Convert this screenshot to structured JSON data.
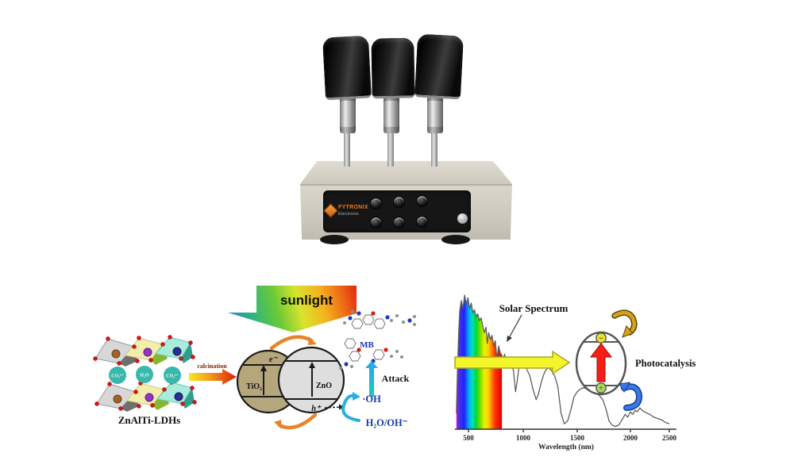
{
  "device": {
    "brand": "FYTRONIX",
    "brand_sub": "Electronic"
  },
  "mechanism": {
    "sunlight": "sunlight",
    "calcination": "calcination",
    "precursor": "ZnAlTi-LDHs",
    "interlayer": [
      "CO₃²⁻",
      "H₂O",
      "CO₃²⁻"
    ],
    "tio2": "TiO₂",
    "zno": "ZnO",
    "electron": "e⁻",
    "hole": "h⁺",
    "dye": "MB",
    "attack": "Attack",
    "radical": "·OH",
    "water": "H₂O/OH⁻"
  },
  "spectrum": {
    "title": "Solar Spectrum",
    "xlabel": "Wavelength (nm)",
    "photocatalysis": "Photocatalysis",
    "electron_symbol": "−",
    "hole_symbol": "+"
  },
  "colors": {
    "brand_orange": "#f07818",
    "dye_blue": "#2030c0",
    "radical_blue": "#1a3aa8",
    "arc_orange": "#e8832a",
    "arrow_gold": "#d4a418",
    "arrow_blue": "#3a78e8",
    "red_arrow": "#f32018"
  },
  "chart_data": {
    "type": "area",
    "title": "Solar Spectrum",
    "xlabel": "Wavelength (nm)",
    "ylabel": "",
    "x_ticks": [
      500,
      1000,
      1500,
      2000,
      2500
    ],
    "x_range": [
      390,
      2550
    ],
    "y_range": [
      0,
      1
    ],
    "grid": false,
    "legend": false,
    "rainbow_region_nm": [
      390,
      805
    ],
    "points": [
      [
        390,
        0.12
      ],
      [
        400,
        0.45
      ],
      [
        410,
        0.7
      ],
      [
        420,
        0.88
      ],
      [
        435,
        0.96
      ],
      [
        450,
        0.9
      ],
      [
        465,
        1.0
      ],
      [
        480,
        0.93
      ],
      [
        495,
        0.98
      ],
      [
        510,
        0.9
      ],
      [
        525,
        0.94
      ],
      [
        540,
        0.87
      ],
      [
        555,
        0.89
      ],
      [
        570,
        0.84
      ],
      [
        585,
        0.86
      ],
      [
        600,
        0.81
      ],
      [
        615,
        0.83
      ],
      [
        630,
        0.77
      ],
      [
        645,
        0.72
      ],
      [
        660,
        0.76
      ],
      [
        672,
        0.64
      ],
      [
        685,
        0.72
      ],
      [
        700,
        0.67
      ],
      [
        715,
        0.7
      ],
      [
        730,
        0.62
      ],
      [
        745,
        0.66
      ],
      [
        760,
        0.52
      ],
      [
        775,
        0.62
      ],
      [
        790,
        0.57
      ],
      [
        805,
        0.55
      ],
      [
        815,
        0.52
      ],
      [
        830,
        0.56
      ],
      [
        850,
        0.46
      ],
      [
        870,
        0.52
      ],
      [
        890,
        0.48
      ],
      [
        910,
        0.44
      ],
      [
        930,
        0.28
      ],
      [
        945,
        0.36
      ],
      [
        960,
        0.46
      ],
      [
        980,
        0.5
      ],
      [
        1000,
        0.48
      ],
      [
        1030,
        0.45
      ],
      [
        1060,
        0.4
      ],
      [
        1090,
        0.3
      ],
      [
        1120,
        0.22
      ],
      [
        1140,
        0.26
      ],
      [
        1170,
        0.36
      ],
      [
        1200,
        0.43
      ],
      [
        1230,
        0.46
      ],
      [
        1260,
        0.44
      ],
      [
        1290,
        0.4
      ],
      [
        1320,
        0.32
      ],
      [
        1350,
        0.12
      ],
      [
        1380,
        0.04
      ],
      [
        1410,
        0.06
      ],
      [
        1440,
        0.14
      ],
      [
        1470,
        0.24
      ],
      [
        1500,
        0.28
      ],
      [
        1530,
        0.3
      ],
      [
        1560,
        0.31
      ],
      [
        1590,
        0.3
      ],
      [
        1620,
        0.29
      ],
      [
        1650,
        0.28
      ],
      [
        1680,
        0.27
      ],
      [
        1710,
        0.25
      ],
      [
        1740,
        0.22
      ],
      [
        1770,
        0.15
      ],
      [
        1800,
        0.06
      ],
      [
        1830,
        0.03
      ],
      [
        1860,
        0.02
      ],
      [
        1890,
        0.03
      ],
      [
        1920,
        0.07
      ],
      [
        1950,
        0.11
      ],
      [
        1975,
        0.09
      ],
      [
        2000,
        0.13
      ],
      [
        2030,
        0.11
      ],
      [
        2060,
        0.14
      ],
      [
        2090,
        0.13
      ],
      [
        2120,
        0.16
      ],
      [
        2150,
        0.14
      ],
      [
        2180,
        0.13
      ],
      [
        2210,
        0.12
      ],
      [
        2250,
        0.11
      ],
      [
        2300,
        0.09
      ],
      [
        2350,
        0.08
      ],
      [
        2400,
        0.07
      ],
      [
        2450,
        0.05
      ],
      [
        2500,
        0.04
      ]
    ]
  }
}
